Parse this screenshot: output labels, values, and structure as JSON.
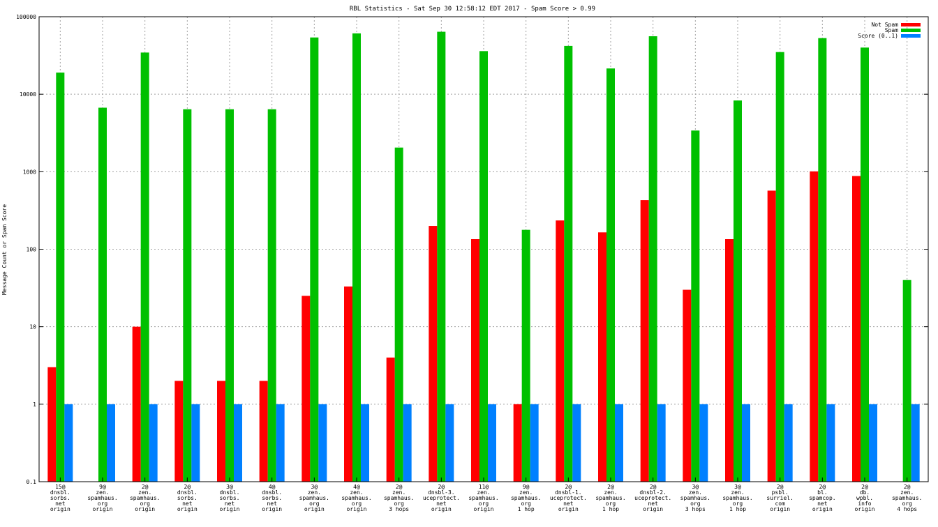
{
  "chart_data": {
    "type": "bar",
    "title": "RBL Statistics - Sat Sep 30 12:58:12 EDT 2017 - Spam Score > 0.99",
    "xlabel": "",
    "ylabel": "Message Count or Spam Score",
    "yscale": "log",
    "ylim": [
      0.1,
      100000
    ],
    "yticks": [
      "0.1",
      "1",
      "10",
      "100",
      "1000",
      "10000",
      "100000"
    ],
    "grid": true,
    "legend_position": "top-right",
    "categories": [
      [
        "15@",
        "dnsbl.",
        "sorbs.",
        "net",
        "origin"
      ],
      [
        "9@",
        "zen.",
        "spamhaus.",
        "org",
        "origin"
      ],
      [
        "2@",
        "zen.",
        "spamhaus.",
        "org",
        "origin"
      ],
      [
        "2@",
        "dnsbl.",
        "sorbs.",
        "net",
        "origin"
      ],
      [
        "3@",
        "dnsbl.",
        "sorbs.",
        "net",
        "origin"
      ],
      [
        "4@",
        "dnsbl.",
        "sorbs.",
        "net",
        "origin"
      ],
      [
        "3@",
        "zen.",
        "spamhaus.",
        "org",
        "origin"
      ],
      [
        "4@",
        "zen.",
        "spamhaus.",
        "org",
        "origin"
      ],
      [
        "2@",
        "zen.",
        "spamhaus.",
        "org",
        "3 hops"
      ],
      [
        "2@",
        "dnsbl-3.",
        "uceprotect.",
        "net",
        "origin"
      ],
      [
        "11@",
        "zen.",
        "spamhaus.",
        "org",
        "origin"
      ],
      [
        "9@",
        "zen.",
        "spamhaus.",
        "org",
        "1 hop"
      ],
      [
        "2@",
        "dnsbl-1.",
        "uceprotect.",
        "net",
        "origin"
      ],
      [
        "2@",
        "zen.",
        "spamhaus.",
        "org",
        "1 hop"
      ],
      [
        "2@",
        "dnsbl-2.",
        "uceprotect.",
        "net",
        "origin"
      ],
      [
        "3@",
        "zen.",
        "spamhaus.",
        "org",
        "3 hops"
      ],
      [
        "3@",
        "zen.",
        "spamhaus.",
        "org",
        "1 hop"
      ],
      [
        "2@",
        "psbl.",
        "surriel.",
        "com",
        "origin"
      ],
      [
        "2@",
        "bl.",
        "spamcop.",
        "net",
        "origin"
      ],
      [
        "2@",
        "db.",
        "wpbl.",
        "info",
        "origin"
      ],
      [
        "2@",
        "zen.",
        "spamhaus.",
        "org",
        "4 hops"
      ]
    ],
    "series": [
      {
        "name": "Not Spam",
        "color": "#ff0000",
        "values": [
          3,
          null,
          10,
          2,
          2,
          2,
          25,
          33,
          4,
          200,
          135,
          1,
          235,
          165,
          430,
          30,
          135,
          570,
          1010,
          880,
          null
        ]
      },
      {
        "name": "Spam",
        "color": "#00c000",
        "values": [
          19000,
          6700,
          34500,
          6400,
          6400,
          6400,
          54000,
          61000,
          2050,
          64000,
          36000,
          178,
          42000,
          21500,
          56000,
          3400,
          8300,
          35000,
          53000,
          40000,
          40
        ]
      },
      {
        "name": "Score (0..1)",
        "color": "#0080ff",
        "values": [
          1,
          1,
          1,
          1,
          1,
          1,
          1,
          1,
          1,
          1,
          1,
          1,
          1,
          1,
          1,
          1,
          1,
          1,
          1,
          1,
          1
        ]
      }
    ]
  }
}
